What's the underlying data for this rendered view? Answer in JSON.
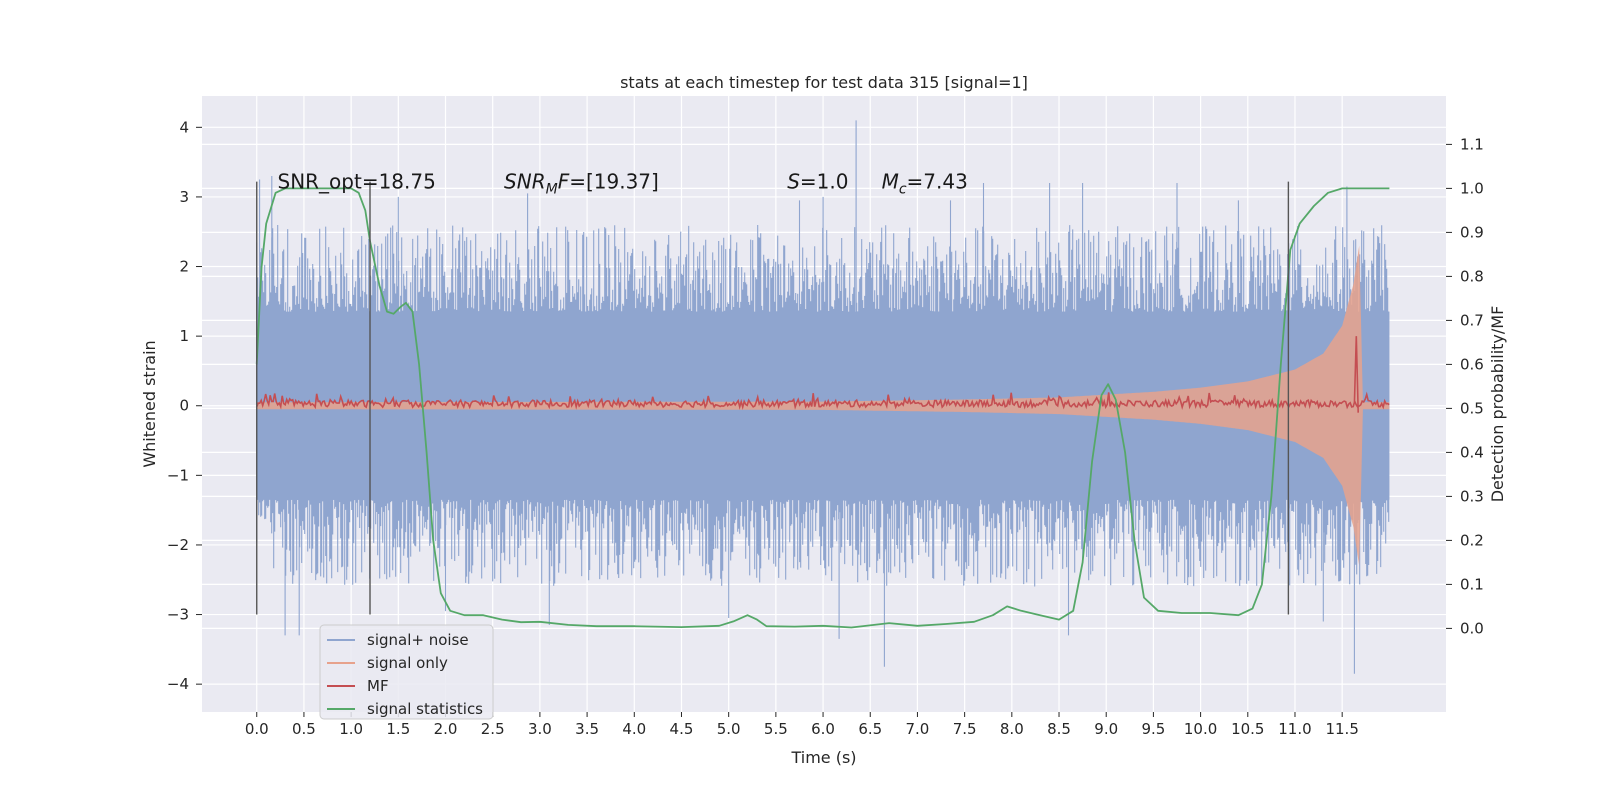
{
  "chart_data": {
    "type": "line",
    "title": "stats at each timestep for test data 315 [signal=1]",
    "xlabel": "Time (s)",
    "ylabel": "Whitened strain",
    "y2label": "Detection probability/MF",
    "xlim": [
      -0.58,
      12.6
    ],
    "ylim": [
      -4.4,
      4.45
    ],
    "y2lim": [
      -0.19,
      1.21
    ],
    "xticks": [
      0.0,
      0.5,
      1.0,
      1.5,
      2.0,
      2.5,
      3.0,
      3.5,
      4.0,
      4.5,
      5.0,
      5.5,
      6.0,
      6.5,
      7.0,
      7.5,
      8.0,
      8.5,
      9.0,
      9.5,
      10.0,
      10.5,
      11.0,
      11.5
    ],
    "xtick_labels": [
      "0.0",
      "0.5",
      "1.0",
      "1.5",
      "2.0",
      "2.5",
      "3.0",
      "3.5",
      "4.0",
      "4.5",
      "5.0",
      "5.5",
      "6.0",
      "6.5",
      "7.0",
      "7.5",
      "8.0",
      "8.5",
      "9.0",
      "9.5",
      "10.0",
      "10.5",
      "11.0",
      "11.5"
    ],
    "yticks": [
      -4,
      -3,
      -2,
      -1,
      0,
      1,
      2,
      3,
      4
    ],
    "ytick_labels": [
      "−4",
      "−3",
      "−2",
      "−1",
      "0",
      "1",
      "2",
      "3",
      "4"
    ],
    "y2ticks": [
      0.0,
      0.1,
      0.2,
      0.3,
      0.4,
      0.5,
      0.6,
      0.7,
      0.8,
      0.9,
      1.0,
      1.1
    ],
    "y2tick_labels": [
      "0.0",
      "0.1",
      "0.2",
      "0.3",
      "0.4",
      "0.5",
      "0.6",
      "0.7",
      "0.8",
      "0.9",
      "1.0",
      "1.1"
    ],
    "grid": true,
    "legend_position": "lower-left",
    "annotations": [
      {
        "id": "snr-opt",
        "text": "SNR_opt=18.75",
        "x": 0.22,
        "y": 3.12
      },
      {
        "id": "snr-mf",
        "text": "SNR",
        "sub": "M",
        "tail": "F=[19.37]",
        "x": 2.62,
        "y": 3.12
      },
      {
        "id": "s-val",
        "text": "S",
        "tail": "=1.0",
        "x": 5.62,
        "y": 3.12
      },
      {
        "id": "mc-val",
        "text": "M",
        "sub": "c",
        "tail": "=7.43",
        "x": 6.62,
        "y": 3.12
      }
    ],
    "vlines": [
      0.0,
      1.2,
      10.93
    ],
    "vline_range": [
      -3.0,
      3.22
    ],
    "series": [
      {
        "name": "signal+ noise",
        "color": "#8fa5cf",
        "axis": "left",
        "kind": "noise-band",
        "t_range": [
          0.0,
          12.0
        ],
        "core_abs": 1.35,
        "spike_max": 2.6,
        "outliers": [
          [
            0.03,
            3.25
          ],
          [
            0.16,
            3.3
          ],
          [
            0.3,
            -3.3
          ],
          [
            0.45,
            -3.3
          ],
          [
            1.5,
            3.0
          ],
          [
            2.0,
            -2.95
          ],
          [
            2.87,
            3.05
          ],
          [
            3.1,
            -3.15
          ],
          [
            5.0,
            -3.05
          ],
          [
            5.75,
            2.95
          ],
          [
            6.0,
            3.0
          ],
          [
            6.17,
            -3.35
          ],
          [
            6.35,
            4.1
          ],
          [
            6.65,
            -3.75
          ],
          [
            7.35,
            2.95
          ],
          [
            7.7,
            3.2
          ],
          [
            8.4,
            3.2
          ],
          [
            8.6,
            -3.3
          ],
          [
            8.75,
            3.2
          ],
          [
            9.75,
            3.2
          ],
          [
            10.4,
            2.95
          ],
          [
            11.3,
            -3.1
          ],
          [
            11.55,
            3.15
          ],
          [
            11.63,
            -3.85
          ]
        ]
      },
      {
        "name": "signal only",
        "color": "#e7a28c",
        "axis": "left",
        "kind": "chirp-envelope",
        "amplitude": [
          [
            0.0,
            0.05
          ],
          [
            6.0,
            0.06
          ],
          [
            7.5,
            0.09
          ],
          [
            8.5,
            0.12
          ],
          [
            9.0,
            0.16
          ],
          [
            9.5,
            0.2
          ],
          [
            10.0,
            0.26
          ],
          [
            10.5,
            0.35
          ],
          [
            11.0,
            0.52
          ],
          [
            11.3,
            0.75
          ],
          [
            11.5,
            1.15
          ],
          [
            11.62,
            1.75
          ],
          [
            11.68,
            2.3
          ],
          [
            11.72,
            0.05
          ],
          [
            12.0,
            0.05
          ]
        ]
      },
      {
        "name": "MF",
        "color": "#c44e52",
        "axis": "left",
        "kind": "jitter",
        "base": 0.03,
        "jitter": 0.1,
        "spikes": [
          [
            11.65,
            1.0
          ]
        ]
      },
      {
        "name": "signal statistics",
        "color": "#55a868",
        "axis": "right",
        "kind": "line",
        "points": [
          [
            0.0,
            0.6
          ],
          [
            0.05,
            0.82
          ],
          [
            0.1,
            0.92
          ],
          [
            0.2,
            0.99
          ],
          [
            0.3,
            1.0
          ],
          [
            0.5,
            1.0
          ],
          [
            0.9,
            1.0
          ],
          [
            1.0,
            1.0
          ],
          [
            1.08,
            0.99
          ],
          [
            1.15,
            0.95
          ],
          [
            1.2,
            0.88
          ],
          [
            1.3,
            0.78
          ],
          [
            1.38,
            0.72
          ],
          [
            1.45,
            0.715
          ],
          [
            1.52,
            0.73
          ],
          [
            1.58,
            0.74
          ],
          [
            1.65,
            0.72
          ],
          [
            1.72,
            0.6
          ],
          [
            1.8,
            0.4
          ],
          [
            1.87,
            0.2
          ],
          [
            1.95,
            0.08
          ],
          [
            2.05,
            0.04
          ],
          [
            2.2,
            0.03
          ],
          [
            2.4,
            0.03
          ],
          [
            2.6,
            0.02
          ],
          [
            2.8,
            0.014
          ],
          [
            3.0,
            0.015
          ],
          [
            3.3,
            0.008
          ],
          [
            3.6,
            0.005
          ],
          [
            4.0,
            0.005
          ],
          [
            4.5,
            0.003
          ],
          [
            4.9,
            0.006
          ],
          [
            5.05,
            0.016
          ],
          [
            5.2,
            0.03
          ],
          [
            5.3,
            0.02
          ],
          [
            5.4,
            0.005
          ],
          [
            5.7,
            0.004
          ],
          [
            6.0,
            0.006
          ],
          [
            6.3,
            0.002
          ],
          [
            6.7,
            0.012
          ],
          [
            7.0,
            0.006
          ],
          [
            7.3,
            0.01
          ],
          [
            7.6,
            0.015
          ],
          [
            7.8,
            0.03
          ],
          [
            7.95,
            0.05
          ],
          [
            8.1,
            0.04
          ],
          [
            8.3,
            0.03
          ],
          [
            8.5,
            0.02
          ],
          [
            8.65,
            0.04
          ],
          [
            8.75,
            0.15
          ],
          [
            8.85,
            0.38
          ],
          [
            8.95,
            0.53
          ],
          [
            9.02,
            0.555
          ],
          [
            9.1,
            0.52
          ],
          [
            9.2,
            0.4
          ],
          [
            9.3,
            0.2
          ],
          [
            9.4,
            0.07
          ],
          [
            9.55,
            0.04
          ],
          [
            9.8,
            0.035
          ],
          [
            10.1,
            0.035
          ],
          [
            10.4,
            0.03
          ],
          [
            10.55,
            0.045
          ],
          [
            10.65,
            0.1
          ],
          [
            10.75,
            0.3
          ],
          [
            10.85,
            0.6
          ],
          [
            10.95,
            0.86
          ],
          [
            11.05,
            0.92
          ],
          [
            11.2,
            0.96
          ],
          [
            11.35,
            0.99
          ],
          [
            11.5,
            1.0
          ],
          [
            11.8,
            1.0
          ],
          [
            12.0,
            1.0
          ]
        ]
      }
    ]
  }
}
